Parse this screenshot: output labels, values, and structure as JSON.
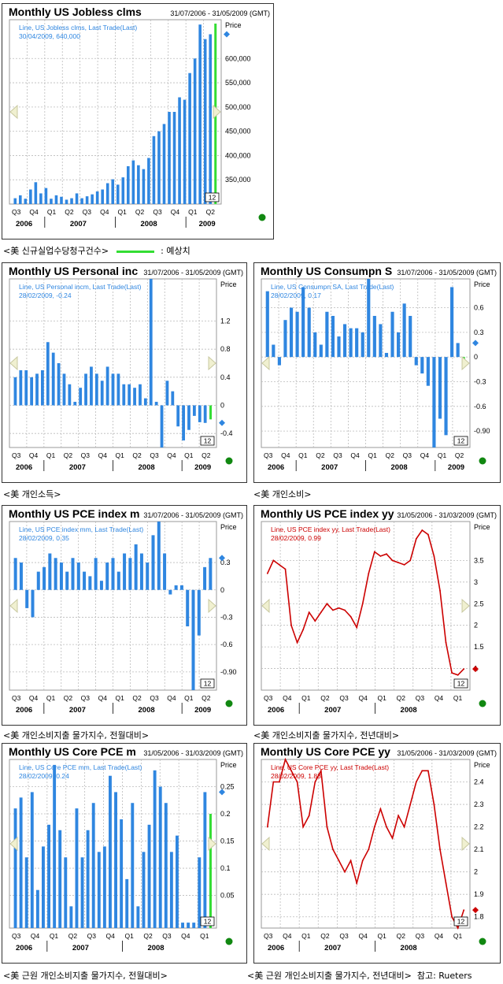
{
  "colors": {
    "bar": "#2f86e0",
    "line": "#cc0000",
    "forecast": "#33dd33",
    "grid": "#bbbbbb",
    "marker": "#118811"
  },
  "zoom_label": "12",
  "price_label": "Price",
  "captions": {
    "c1_prefix": "<美 신규실업수당청구건수>",
    "c1_legend": ": 예상치",
    "c2": "<美 개인소득>",
    "c3": "<美 개인소비>",
    "c4": "<美 개인소비지출 물가지수, 전월대비>",
    "c5": "<美 개인소비지출 물가지수, 전년대비>",
    "c6": "<美 근원 개인소비지출 물가지수, 전월대비>",
    "c7": "<美 근원 개인소비지출 물가지수, 전년대비>",
    "source": "참고: Rueters"
  },
  "chart_data": [
    {
      "id": "c1",
      "type": "bar",
      "title": "Monthly US Jobless clms",
      "date_range": "31/07/2006 - 31/05/2009 (GMT)",
      "legend_line1": "Line, US Jobless clms, Last Trade(Last)",
      "legend_line2": "30/04/2009, 640,000",
      "ylim": [
        300000,
        680000
      ],
      "y_ticks": [
        {
          "v": 350000,
          "t": "350,000"
        },
        {
          "v": 400000,
          "t": "400,000"
        },
        {
          "v": 450000,
          "t": "450,000"
        },
        {
          "v": 500000,
          "t": "500,000"
        },
        {
          "v": 550000,
          "t": "550,000"
        },
        {
          "v": 600000,
          "t": "600,000"
        }
      ],
      "q_labels": [
        "Q3",
        "Q4",
        "Q1",
        "Q2",
        "Q3",
        "Q4",
        "Q1",
        "Q2",
        "Q3",
        "Q4",
        "Q1",
        "Q2"
      ],
      "years": [
        "2006",
        "2007",
        "2008",
        "2009"
      ],
      "values": [
        312000,
        318000,
        311000,
        330000,
        345000,
        322000,
        333000,
        311000,
        318000,
        315000,
        309000,
        312000,
        322000,
        312000,
        316000,
        320000,
        326000,
        330000,
        343000,
        351000,
        340000,
        355000,
        378000,
        390000,
        380000,
        372000,
        395000,
        440000,
        450000,
        465000,
        490000,
        490000,
        520000,
        515000,
        570000,
        600000,
        670000,
        640000,
        650000
      ],
      "forecast": [
        672000
      ]
    },
    {
      "id": "c2",
      "type": "bar",
      "title": "Monthly US Personal inc",
      "date_range": "31/07/2006 - 31/05/2009 (GMT)",
      "legend_line1": "Line, US Personal incm, Last Trade(Last)",
      "legend_line2": "28/02/2009, -0.24",
      "ylim": [
        -0.6,
        1.8
      ],
      "y_ticks": [
        {
          "v": -0.4,
          "t": "-0.4"
        },
        {
          "v": 0,
          "t": "0"
        },
        {
          "v": 0.4,
          "t": "0.4"
        },
        {
          "v": 0.8,
          "t": "0.8"
        },
        {
          "v": 1.2,
          "t": "1.2"
        }
      ],
      "q_labels": [
        "Q3",
        "Q4",
        "Q1",
        "Q2",
        "Q3",
        "Q4",
        "Q1",
        "Q2",
        "Q3",
        "Q4",
        "Q1",
        "Q2"
      ],
      "years": [
        "2006",
        "2007",
        "2008",
        "2009"
      ],
      "values": [
        0.4,
        0.5,
        0.5,
        0.4,
        0.45,
        0.5,
        0.9,
        0.75,
        0.6,
        0.45,
        0.3,
        0.05,
        0.25,
        0.45,
        0.55,
        0.45,
        0.35,
        0.55,
        0.45,
        0.45,
        0.3,
        0.3,
        0.25,
        0.3,
        0.1,
        1.8,
        0.05,
        -0.6,
        0.35,
        0.2,
        -0.3,
        -0.5,
        -0.35,
        -0.15,
        -0.24,
        -0.25
      ],
      "forecast": [
        -0.2
      ]
    },
    {
      "id": "c3",
      "type": "bar",
      "title": "Monthly US Consumpn S",
      "date_range": "31/07/2006 - 31/05/2009 (GMT)",
      "legend_line1": "Line, US Consumpn SA, Last Trade(Last)",
      "legend_line2": "28/02/2009, 0.17",
      "ylim": [
        -1.1,
        0.95
      ],
      "y_ticks": [
        {
          "v": -0.9,
          "t": "-0.90"
        },
        {
          "v": -0.6,
          "t": "-0.6"
        },
        {
          "v": -0.3,
          "t": "-0.3"
        },
        {
          "v": 0,
          "t": "0"
        },
        {
          "v": 0.3,
          "t": "0.3"
        },
        {
          "v": 0.6,
          "t": "0.6"
        }
      ],
      "q_labels": [
        "Q3",
        "Q4",
        "Q1",
        "Q2",
        "Q3",
        "Q4",
        "Q1",
        "Q2",
        "Q3",
        "Q4",
        "Q1",
        "Q2"
      ],
      "years": [
        "2006",
        "2007",
        "2008",
        "2009"
      ],
      "values": [
        0.8,
        0.15,
        -0.1,
        0.45,
        0.6,
        0.55,
        0.85,
        0.6,
        0.3,
        0.15,
        0.55,
        0.5,
        0.25,
        0.4,
        0.35,
        0.35,
        0.3,
        0.95,
        0.5,
        0.4,
        0.05,
        0.55,
        0.3,
        0.65,
        0.5,
        -0.1,
        -0.2,
        -0.35,
        -1.1,
        -0.75,
        -0.95,
        0.85,
        0.17
      ],
      "forecast": [
        -0.1
      ]
    },
    {
      "id": "c4",
      "type": "bar",
      "title": "Monthly US PCE index m",
      "date_range": "31/07/2006 - 31/05/2009 (GMT)",
      "legend_line1": "Line, US PCE index mm, Last Trade(Last)",
      "legend_line2": "28/02/2009, 0.35",
      "ylim": [
        -1.1,
        0.75
      ],
      "y_ticks": [
        {
          "v": -0.9,
          "t": "-0.90"
        },
        {
          "v": -0.6,
          "t": "-0.6"
        },
        {
          "v": -0.3,
          "t": "-0.3"
        },
        {
          "v": 0,
          "t": "0"
        },
        {
          "v": 0.3,
          "t": "0.3"
        }
      ],
      "q_labels": [
        "Q3",
        "Q4",
        "Q1",
        "Q2",
        "Q3",
        "Q4",
        "Q1",
        "Q2",
        "Q3",
        "Q4",
        "Q1",
        "Q2"
      ],
      "years": [
        "2006",
        "2007",
        "2008",
        "2009"
      ],
      "values": [
        0.35,
        0.3,
        -0.2,
        -0.3,
        0.2,
        0.25,
        0.4,
        0.35,
        0.3,
        0.2,
        0.35,
        0.3,
        0.2,
        0.15,
        0.35,
        0.1,
        0.3,
        0.35,
        0.2,
        0.4,
        0.35,
        0.5,
        0.4,
        0.3,
        0.6,
        0.75,
        0.4,
        -0.05,
        0.05,
        0.05,
        -0.4,
        -1.1,
        -0.5,
        0.25,
        0.35
      ],
      "forecast": []
    },
    {
      "id": "c5",
      "type": "line",
      "title": "Monthly US PCE index yy",
      "date_range": "31/05/2006 - 31/03/2009 (GMT)",
      "legend_line1": "Line, US PCE index yy, Last Trade(Last)",
      "legend_line2": "28/02/2009, 0.99",
      "ylim": [
        0.5,
        4.4
      ],
      "y_ticks": [
        {
          "v": 1,
          "t": "1"
        },
        {
          "v": 1.5,
          "t": "1.5"
        },
        {
          "v": 2,
          "t": "2"
        },
        {
          "v": 2.5,
          "t": "2.5"
        },
        {
          "v": 3,
          "t": "3"
        },
        {
          "v": 3.5,
          "t": "3.5"
        }
      ],
      "q_labels": [
        "Q3",
        "Q4",
        "Q1",
        "Q2",
        "Q3",
        "Q4",
        "Q1",
        "Q2",
        "Q3",
        "Q4",
        "Q1"
      ],
      "years": [
        "2006",
        "2007",
        "2008"
      ],
      "values": [
        3.2,
        3.5,
        3.4,
        3.3,
        2.0,
        1.6,
        1.9,
        2.3,
        2.1,
        2.3,
        2.5,
        2.35,
        2.4,
        2.35,
        2.2,
        1.95,
        2.5,
        3.2,
        3.7,
        3.6,
        3.65,
        3.5,
        3.45,
        3.4,
        3.5,
        4.0,
        4.2,
        4.1,
        3.6,
        2.8,
        1.6,
        0.9,
        0.85,
        0.99
      ]
    },
    {
      "id": "c6",
      "type": "bar",
      "title": "Monthly US Core PCE m",
      "date_range": "31/05/2006 - 31/03/2009 (GMT)",
      "legend_line1": "Line, US Core PCE mm, Last Trade(Last)",
      "legend_line2": "28/02/2009, 0.24",
      "ylim": [
        -0.01,
        0.3
      ],
      "y_ticks": [
        {
          "v": 0.05,
          "t": "0.05"
        },
        {
          "v": 0.1,
          "t": "0.1"
        },
        {
          "v": 0.15,
          "t": "0.15"
        },
        {
          "v": 0.2,
          "t": "0.2"
        },
        {
          "v": 0.25,
          "t": "0.25"
        }
      ],
      "q_labels": [
        "Q3",
        "Q4",
        "Q1",
        "Q2",
        "Q3",
        "Q4",
        "Q1",
        "Q2",
        "Q3",
        "Q4",
        "Q1"
      ],
      "years": [
        "2006",
        "2007",
        "2008"
      ],
      "values": [
        0.21,
        0.23,
        0.12,
        0.24,
        0.06,
        0.14,
        0.18,
        0.29,
        0.17,
        0.12,
        0.03,
        0.21,
        0.12,
        0.17,
        0.22,
        0.13,
        0.14,
        0.27,
        0.24,
        0.19,
        0.08,
        0.22,
        0.03,
        0.13,
        0.18,
        0.28,
        0.25,
        0.22,
        0.13,
        0.16,
        0.0,
        0.0,
        0.0,
        0.12,
        0.24
      ],
      "forecast": [
        0.2
      ]
    },
    {
      "id": "c7",
      "type": "line",
      "title": "Monthly US Core PCE yy",
      "date_range": "31/05/2006 - 31/03/2009 (GMT)",
      "legend_line1": "Line, US Core PCE yy, Last Trade(Last)",
      "legend_line2": "28/02/2009, 1.83",
      "ylim": [
        1.75,
        2.5
      ],
      "y_ticks": [
        {
          "v": 1.8,
          "t": "1.8"
        },
        {
          "v": 1.9,
          "t": "1.9"
        },
        {
          "v": 2,
          "t": "2"
        },
        {
          "v": 2.1,
          "t": "2.1"
        },
        {
          "v": 2.2,
          "t": "2.2"
        },
        {
          "v": 2.3,
          "t": "2.3"
        },
        {
          "v": 2.4,
          "t": "2.4"
        }
      ],
      "q_labels": [
        "Q3",
        "Q4",
        "Q1",
        "Q2",
        "Q3",
        "Q4",
        "Q1",
        "Q2",
        "Q3",
        "Q4",
        "Q1"
      ],
      "years": [
        "2006",
        "2007",
        "2008"
      ],
      "values": [
        2.2,
        2.4,
        2.4,
        2.5,
        2.45,
        2.4,
        2.2,
        2.25,
        2.4,
        2.45,
        2.2,
        2.1,
        2.05,
        2.0,
        2.05,
        1.95,
        2.05,
        2.1,
        2.2,
        2.28,
        2.2,
        2.15,
        2.25,
        2.2,
        2.3,
        2.4,
        2.45,
        2.45,
        2.3,
        2.1,
        1.95,
        1.8,
        1.75,
        1.83
      ]
    }
  ]
}
